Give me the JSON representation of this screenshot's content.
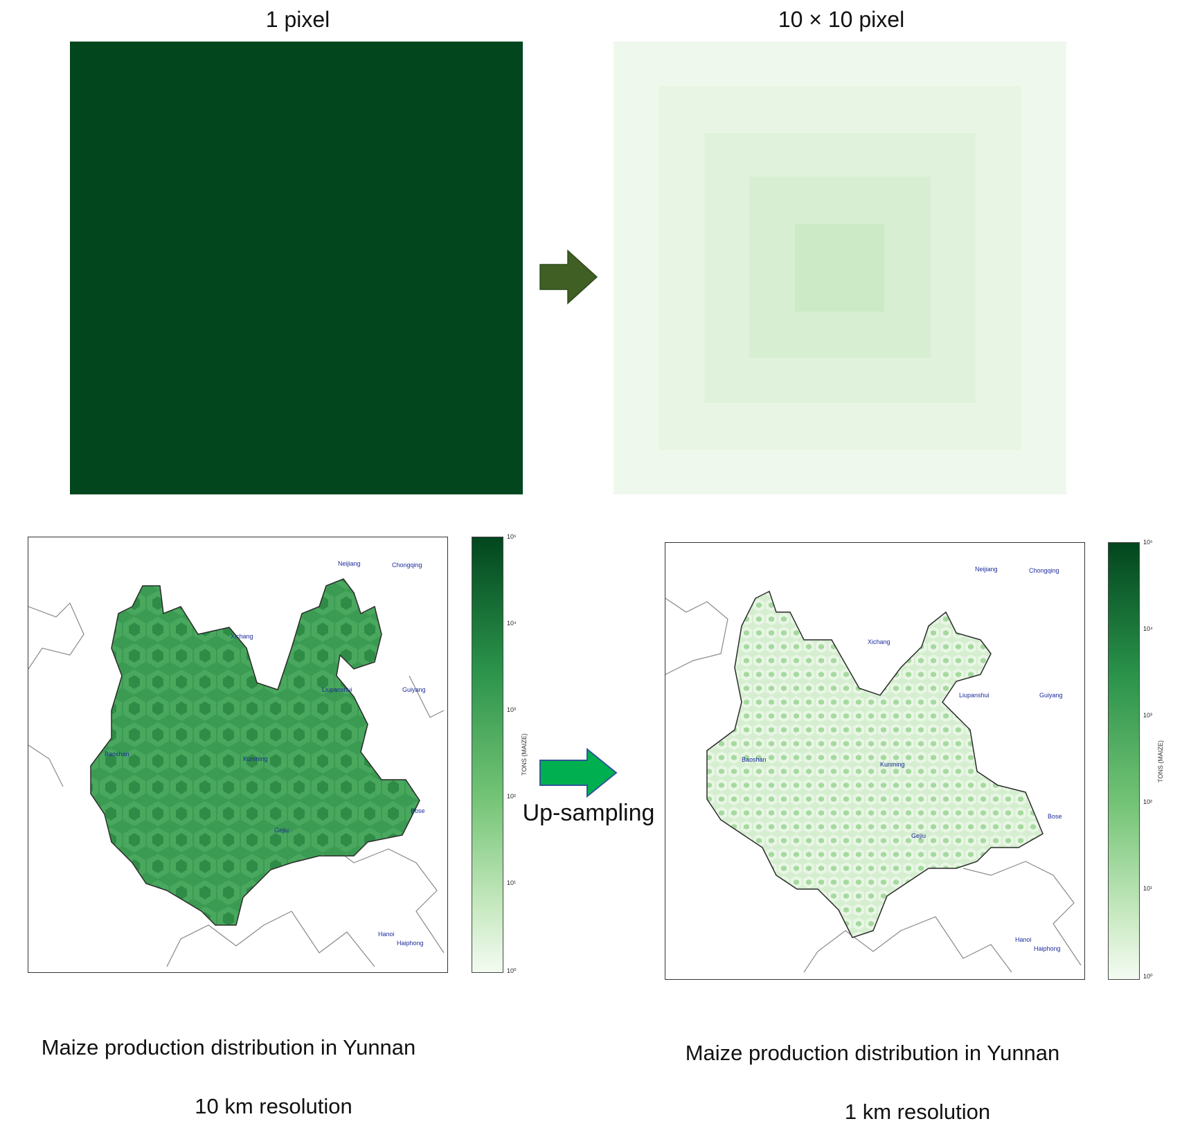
{
  "top": {
    "left_title": "1 pixel",
    "right_title": "10 × 10 pixel"
  },
  "middle_label": "Up-sampling",
  "maps": {
    "colorbar_label": "TONS (MAIZE)",
    "colorbar_ticks": [
      "10⁵",
      "10⁴",
      "10³",
      "10²",
      "10¹",
      "10⁰"
    ],
    "cities": [
      {
        "name": "Neijiang"
      },
      {
        "name": "Chongqing"
      },
      {
        "name": "Xichang"
      },
      {
        "name": "Guiyang"
      },
      {
        "name": "Liupanshui"
      },
      {
        "name": "Baoshan"
      },
      {
        "name": "Kunming"
      },
      {
        "name": "Bose"
      },
      {
        "name": "Gejiu"
      },
      {
        "name": "Hanoi"
      },
      {
        "name": "Haiphong"
      }
    ]
  },
  "captions": {
    "left_line1": "Maize production distribution in Yunnan",
    "left_line2": "10 km resolution",
    "right_line1": "Maize production distribution in Yunnan",
    "right_line2": "1 km resolution"
  },
  "colors": {
    "dark_pixel": "#02461e",
    "arrow_dark": "#3f5f24",
    "arrow_bright": "#00b050",
    "arrow_outline": "#2f5597",
    "city_label": "#1a2a9a"
  }
}
